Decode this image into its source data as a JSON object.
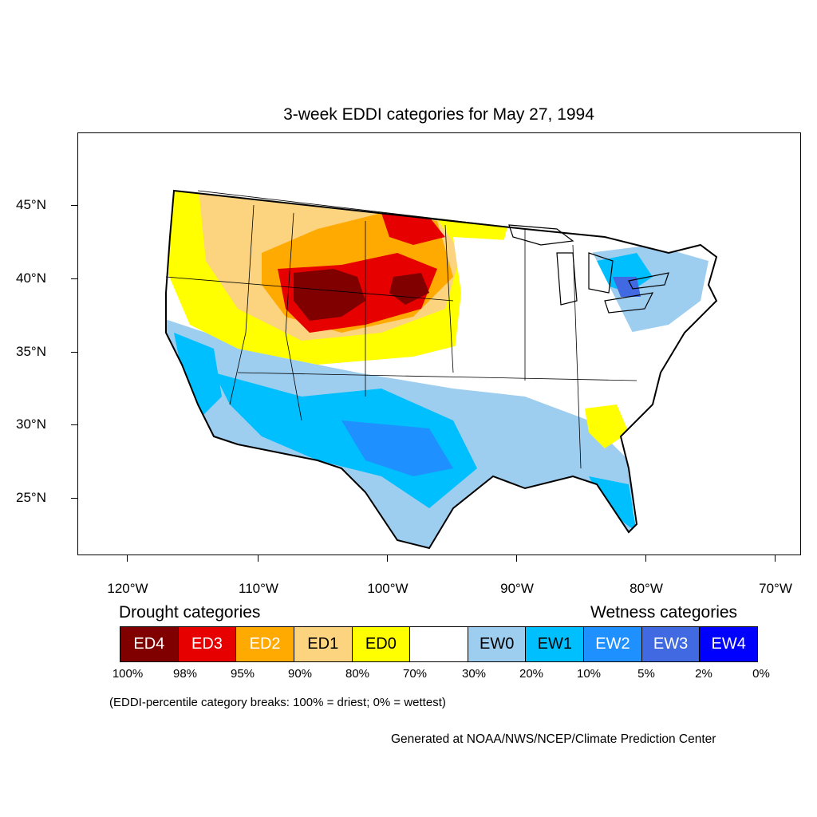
{
  "title": "3-week EDDI categories for May 27, 1994",
  "lat_labels": [
    "45°N",
    "40°N",
    "35°N",
    "30°N",
    "25°N"
  ],
  "lon_labels": [
    "120°W",
    "110°W",
    "100°W",
    "90°W",
    "80°W",
    "70°W"
  ],
  "legend": {
    "drought_header": "Drought categories",
    "wetness_header": "Wetness categories",
    "categories": [
      {
        "label": "ED4",
        "color": "#800000",
        "text_color": "#ffffff"
      },
      {
        "label": "ED3",
        "color": "#e60000",
        "text_color": "#ffffff"
      },
      {
        "label": "ED2",
        "color": "#ffaa00",
        "text_color": "#ffffff"
      },
      {
        "label": "ED1",
        "color": "#fcd37f",
        "text_color": "#000000"
      },
      {
        "label": "ED0",
        "color": "#ffff00",
        "text_color": "#000000"
      },
      {
        "label": "",
        "color": "#ffffff",
        "text_color": "#000000"
      },
      {
        "label": "EW0",
        "color": "#9dcdef",
        "text_color": "#000000"
      },
      {
        "label": "EW1",
        "color": "#00bfff",
        "text_color": "#000000"
      },
      {
        "label": "EW2",
        "color": "#1e90ff",
        "text_color": "#ffffff"
      },
      {
        "label": "EW3",
        "color": "#4169e1",
        "text_color": "#ffffff"
      },
      {
        "label": "EW4",
        "color": "#0000ff",
        "text_color": "#ffffff"
      }
    ],
    "percent_breaks": [
      "100%",
      "98%",
      "95%",
      "90%",
      "80%",
      "70%",
      "30%",
      "20%",
      "10%",
      "5%",
      "2%",
      "0%"
    ]
  },
  "note": "(EDDI-percentile category breaks: 100% = driest; 0% = wettest)",
  "credit": "Generated at NOAA/NWS/NCEP/Climate Prediction Center"
}
